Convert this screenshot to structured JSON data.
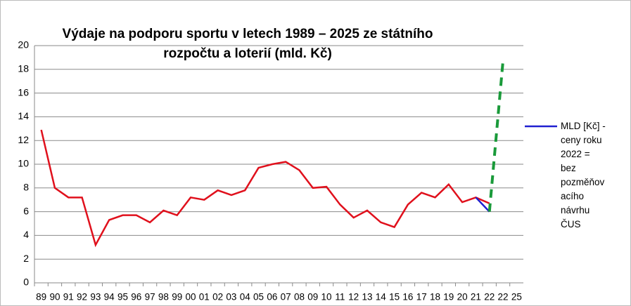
{
  "chart_data": {
    "type": "line",
    "title": [
      "Výdaje na podporu sportu v letech 1989 – 2025 ze státního",
      "rozpočtu a loterií (mld. Kč)"
    ],
    "categories": [
      "89",
      "90",
      "91",
      "92",
      "93",
      "94",
      "95",
      "96",
      "97",
      "98",
      "99",
      "00",
      "01",
      "02",
      "03",
      "04",
      "05",
      "06",
      "07",
      "08",
      "09",
      "10",
      "11",
      "12",
      "13",
      "14",
      "15",
      "16",
      "17",
      "18",
      "19",
      "20",
      "21",
      "22",
      "22",
      "25"
    ],
    "series": [
      {
        "color": "#e0101c",
        "values": [
          12.9,
          8.0,
          7.2,
          7.2,
          3.2,
          5.3,
          5.7,
          5.7,
          5.1,
          6.1,
          5.7,
          7.2,
          7.0,
          7.8,
          7.4,
          7.8,
          9.7,
          10.0,
          10.2,
          9.5,
          8.0,
          8.1,
          6.6,
          5.5,
          6.1,
          5.1,
          4.7,
          6.6,
          7.6,
          7.2,
          8.3,
          6.8,
          7.2,
          6.7,
          null,
          null
        ]
      },
      {
        "name": "MLD [Kč] - ceny roku 2022 = bez pozměňovacího návrhu ČUS",
        "color": "#1f1fd0",
        "values": [
          null,
          null,
          null,
          null,
          null,
          null,
          null,
          null,
          null,
          null,
          null,
          null,
          null,
          null,
          null,
          null,
          null,
          null,
          null,
          null,
          null,
          null,
          null,
          null,
          null,
          null,
          null,
          null,
          null,
          null,
          null,
          null,
          7.2,
          6.0,
          null,
          null
        ]
      },
      {
        "color": "#1a9a3a",
        "dashed": true,
        "values": [
          null,
          null,
          null,
          null,
          null,
          null,
          null,
          null,
          null,
          null,
          null,
          null,
          null,
          null,
          null,
          null,
          null,
          null,
          null,
          null,
          null,
          null,
          null,
          null,
          null,
          null,
          null,
          null,
          null,
          null,
          null,
          null,
          null,
          6.0,
          18.7,
          null
        ]
      }
    ],
    "ylim": [
      0,
      20
    ],
    "yticks": [
      0,
      2,
      4,
      6,
      8,
      10,
      12,
      14,
      16,
      18,
      20
    ],
    "grid": true,
    "legend": "right"
  }
}
